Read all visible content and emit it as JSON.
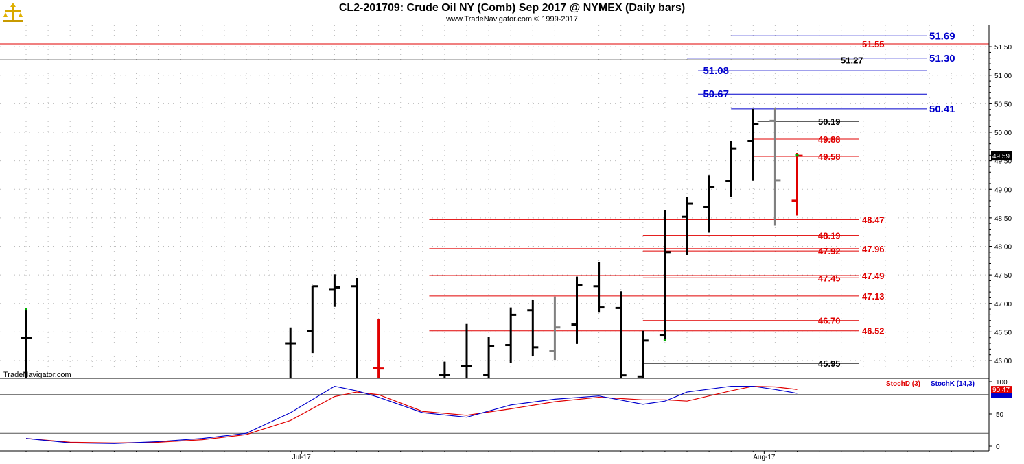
{
  "header": {
    "title": "CL2-201709:  Crude Oil NY (Comb) Sep 2017 @ NYMEX  (Daily bars)",
    "subtitle": "www.TradeNavigator.com © 1999-2017",
    "watermark": "TradeNavigator.com"
  },
  "colors": {
    "black": "#000000",
    "red": "#e00000",
    "blue": "#0000cc",
    "gray": "#808080",
    "green": "#00aa00"
  },
  "chart_data": [
    {
      "type": "ohlc",
      "name": "price",
      "ylim": [
        45.7,
        51.8
      ],
      "grid": true,
      "y_ticks": [
        "51.50",
        "51.00",
        "50.50",
        "50.00",
        "49.50",
        "49.00",
        "48.50",
        "48.00",
        "47.50",
        "47.00",
        "46.50",
        "46.00"
      ],
      "x_labels": [
        {
          "label": "Jul-17",
          "bar": 12.5
        },
        {
          "label": "Aug-17",
          "bar": 33.5
        }
      ],
      "last_price": "49.59",
      "bars": [
        {
          "i": 0,
          "o": 46.4,
          "h": 46.88,
          "l": 45.6,
          "c": 46.4,
          "color": "black"
        },
        {
          "i": 12,
          "o": 46.3,
          "h": 46.58,
          "l": 45.6,
          "c": 46.3,
          "color": "black"
        },
        {
          "i": 13,
          "o": 46.52,
          "h": 47.3,
          "l": 46.13,
          "c": 47.3,
          "color": "black"
        },
        {
          "i": 14,
          "o": 47.25,
          "h": 47.51,
          "l": 46.94,
          "c": 47.28,
          "color": "black"
        },
        {
          "i": 15,
          "o": 47.3,
          "h": 47.45,
          "l": 45.6,
          "c": 45.6,
          "color": "black"
        },
        {
          "i": 16,
          "o": 45.87,
          "h": 46.72,
          "l": 45.6,
          "c": 45.86,
          "color": "red"
        },
        {
          "i": 19,
          "o": 45.75,
          "h": 45.98,
          "l": 45.6,
          "c": 45.75,
          "color": "black"
        },
        {
          "i": 20,
          "o": 45.9,
          "h": 46.64,
          "l": 45.6,
          "c": 45.9,
          "color": "black"
        },
        {
          "i": 21,
          "o": 45.75,
          "h": 46.42,
          "l": 45.6,
          "c": 46.25,
          "color": "black"
        },
        {
          "i": 22,
          "o": 46.27,
          "h": 46.93,
          "l": 45.96,
          "c": 46.8,
          "color": "black"
        },
        {
          "i": 23,
          "o": 46.88,
          "h": 47.06,
          "l": 46.08,
          "c": 46.23,
          "color": "black"
        },
        {
          "i": 24,
          "o": 46.17,
          "h": 47.12,
          "l": 46.01,
          "c": 46.58,
          "color": "gray"
        },
        {
          "i": 25,
          "o": 46.63,
          "h": 47.47,
          "l": 46.29,
          "c": 47.32,
          "color": "black"
        },
        {
          "i": 26,
          "o": 47.3,
          "h": 47.73,
          "l": 46.85,
          "c": 46.93,
          "color": "black"
        },
        {
          "i": 27,
          "o": 46.92,
          "h": 47.21,
          "l": 45.6,
          "c": 45.74,
          "color": "black"
        },
        {
          "i": 28,
          "o": 45.72,
          "h": 46.52,
          "l": 45.6,
          "c": 46.35,
          "color": "black"
        },
        {
          "i": 29,
          "o": 46.45,
          "h": 48.64,
          "l": 46.38,
          "c": 47.9,
          "color": "black"
        },
        {
          "i": 30,
          "o": 48.52,
          "h": 48.86,
          "l": 47.85,
          "c": 48.75,
          "color": "black"
        },
        {
          "i": 31,
          "o": 48.69,
          "h": 49.24,
          "l": 48.24,
          "c": 49.04,
          "color": "black"
        },
        {
          "i": 32,
          "o": 49.15,
          "h": 49.85,
          "l": 48.87,
          "c": 49.71,
          "color": "black"
        },
        {
          "i": 33,
          "o": 49.85,
          "h": 50.41,
          "l": 49.15,
          "c": 50.15,
          "color": "black"
        },
        {
          "i": 34,
          "o": 50.2,
          "h": 50.42,
          "l": 48.36,
          "c": 49.16,
          "color": "gray"
        },
        {
          "i": 35,
          "o": 48.8,
          "h": 49.64,
          "l": 48.54,
          "c": 49.59,
          "color": "red"
        }
      ],
      "levels": [
        {
          "value": "51.69",
          "color": "blue",
          "from": 32,
          "to": null,
          "label_pos": "right"
        },
        {
          "value": "51.55",
          "color": "red",
          "from": -1.2,
          "to": null,
          "label_pos": "mid"
        },
        {
          "value": "51.30",
          "color": "blue",
          "from": 30,
          "to": null,
          "label_pos": "right"
        },
        {
          "value": "51.27",
          "color": "black",
          "from": -1.2,
          "to": null,
          "label_pos": "mid"
        },
        {
          "value": "51.08",
          "color": "blue",
          "from": 30.5,
          "to": null,
          "label_pos": "left"
        },
        {
          "value": "50.67",
          "color": "blue",
          "from": 30.5,
          "to": null,
          "label_pos": "left"
        },
        {
          "value": "50.41",
          "color": "blue",
          "from": 32,
          "to": null,
          "label_pos": "right"
        },
        {
          "value": "50.19",
          "color": "black",
          "from": 33.2,
          "to": null,
          "label_pos": "mid"
        },
        {
          "value": "49.88",
          "color": "red",
          "from": 33,
          "to": null,
          "label_pos": "mid"
        },
        {
          "value": "49.58",
          "color": "red",
          "from": 33,
          "to": null,
          "label_pos": "mid"
        },
        {
          "value": "48.47",
          "color": "red",
          "from": 18.3,
          "to": null,
          "label_pos": "right"
        },
        {
          "value": "48.19",
          "color": "red",
          "from": 28,
          "to": null,
          "label_pos": "mid"
        },
        {
          "value": "47.96",
          "color": "red",
          "from": 18.3,
          "to": null,
          "label_pos": "right"
        },
        {
          "value": "47.92",
          "color": "red",
          "from": 28,
          "to": null,
          "label_pos": "mid"
        },
        {
          "value": "47.49",
          "color": "red",
          "from": 18.3,
          "to": null,
          "label_pos": "right"
        },
        {
          "value": "47.45",
          "color": "red",
          "from": 28,
          "to": null,
          "label_pos": "mid"
        },
        {
          "value": "47.13",
          "color": "red",
          "from": 18.3,
          "to": null,
          "label_pos": "right"
        },
        {
          "value": "46.70",
          "color": "red",
          "from": 28,
          "to": null,
          "label_pos": "mid"
        },
        {
          "value": "46.52",
          "color": "red",
          "from": 18.3,
          "to": null,
          "label_pos": "right"
        },
        {
          "value": "45.95",
          "color": "black",
          "from": 28,
          "to": null,
          "label_pos": "mid"
        }
      ]
    },
    {
      "type": "line",
      "name": "stochastic",
      "ylim": [
        -5,
        107
      ],
      "y_ticks": [
        "100",
        "50",
        "0"
      ],
      "last_value": "90.47",
      "legend": [
        {
          "name": "StochD (3)",
          "color": "red"
        },
        {
          "name": "StochK (14,3)",
          "color": "blue"
        }
      ],
      "x": [
        0,
        2,
        4,
        6,
        8,
        10,
        12,
        14,
        15,
        16,
        18,
        20,
        22,
        24,
        26,
        28,
        29,
        30,
        32,
        33,
        34,
        35
      ],
      "series": [
        {
          "name": "StochD (3)",
          "color": "red",
          "values": [
            12,
            6,
            5,
            6,
            10,
            18,
            40,
            77,
            84,
            80,
            54,
            48,
            58,
            69,
            76,
            72,
            72,
            70,
            86,
            93,
            92,
            88
          ]
        },
        {
          "name": "StochK (14,3)",
          "color": "blue",
          "values": [
            12,
            5,
            4,
            7,
            12,
            20,
            52,
            93,
            86,
            76,
            52,
            45,
            64,
            73,
            78,
            65,
            70,
            84,
            93,
            93,
            88,
            82
          ]
        }
      ],
      "ref_lines": [
        80,
        20
      ]
    }
  ]
}
